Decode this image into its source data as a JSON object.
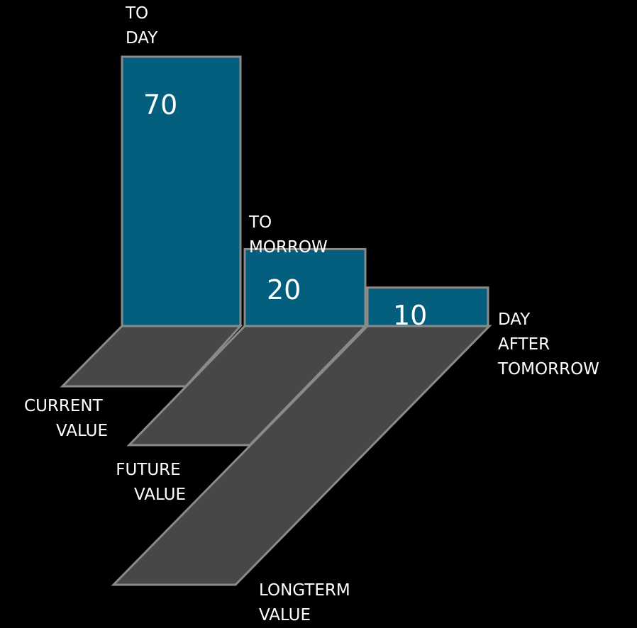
{
  "chart_data": {
    "type": "bar",
    "categories": [
      [
        "TO",
        "DAY"
      ],
      [
        "TO",
        "MORROW"
      ],
      [
        "DAY",
        "AFTER",
        "TOMORROW"
      ]
    ],
    "values": [
      70,
      20,
      10
    ],
    "base_labels": [
      [
        "CURRENT",
        "VALUE"
      ],
      [
        "FUTURE",
        "VALUE"
      ],
      [
        "LONGTERM",
        "VALUE"
      ]
    ],
    "colors": {
      "bar_fill": "#045f7e",
      "base_fill": "#474747",
      "stroke": "#8a8a8a",
      "background": "#000000",
      "text": "#ffffff"
    },
    "grid": false
  }
}
